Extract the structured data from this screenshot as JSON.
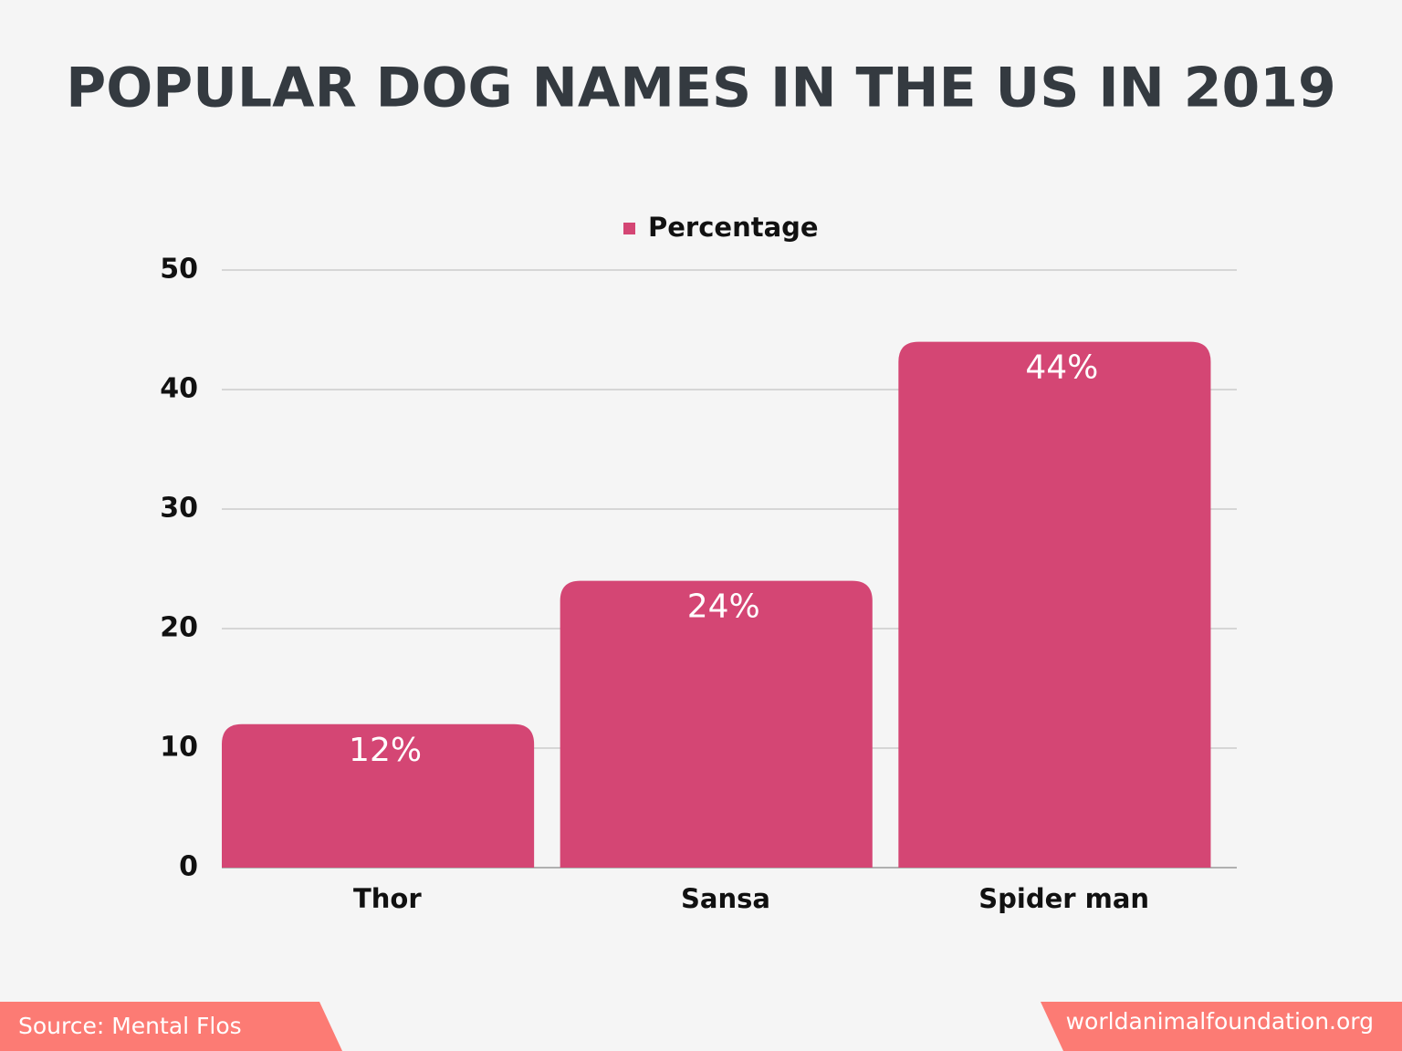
{
  "chart_data": {
    "type": "bar",
    "title": "POPULAR DOG NAMES IN THE US IN 2019",
    "categories": [
      "Thor",
      "Sansa",
      "Spider man"
    ],
    "series": [
      {
        "name": "Percentage",
        "color": "#d44674",
        "values": [
          12,
          24,
          44
        ],
        "value_labels": [
          "12%",
          "24%",
          "44%"
        ]
      }
    ],
    "ylim": [
      0,
      50
    ],
    "yticks": [
      0,
      10,
      20,
      30,
      40,
      50
    ],
    "grid": true,
    "legend": "top",
    "source": "Source: Mental Flos",
    "website": "worldanimalfoundation.org"
  }
}
